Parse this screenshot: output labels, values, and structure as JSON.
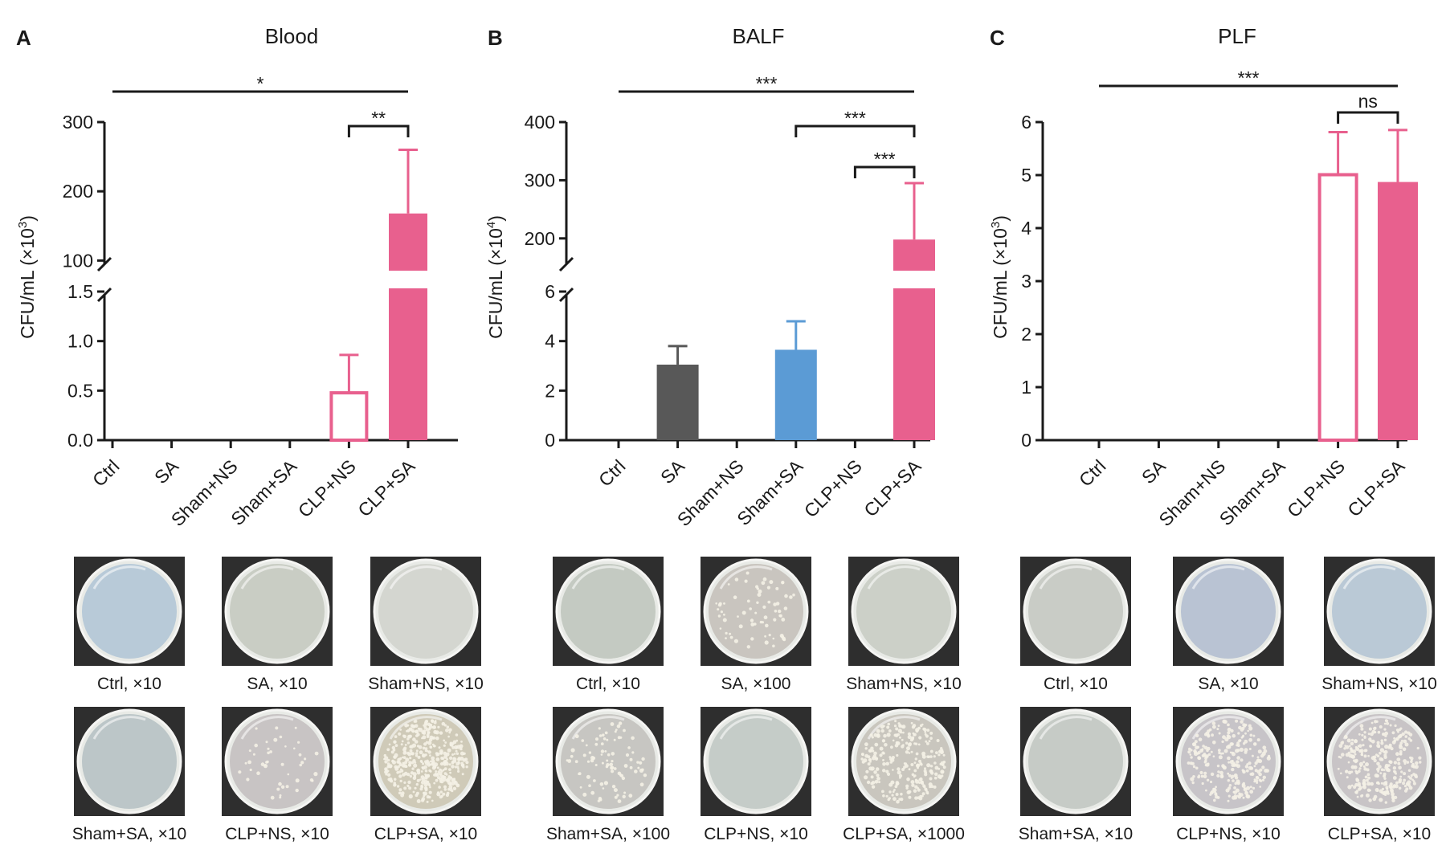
{
  "chart_data": [
    {
      "type": "bar",
      "panel": "A",
      "title": "Blood",
      "ylabel": "CFU/mL (×10³)",
      "ylabel_main": "CFU/mL (×10",
      "ylabel_exp": "3",
      "ylabel_close": ")",
      "categories": [
        "Ctrl",
        "SA",
        "Sham+NS",
        "Sham+SA",
        "CLP+NS",
        "CLP+SA"
      ],
      "values": [
        0,
        0,
        0,
        0,
        0.49,
        168
      ],
      "errors": [
        0,
        0,
        0,
        0,
        0.37,
        92
      ],
      "bar_styles": [
        "none",
        "none",
        "none",
        "none",
        "outline",
        "filled"
      ],
      "colors": [
        "#e8608e",
        "#e8608e",
        "#e8608e",
        "#e8608e",
        "#e8608e",
        "#e8608e"
      ],
      "axis_break": true,
      "ylim_lower": [
        0,
        1.5
      ],
      "ylim_upper": [
        90,
        300
      ],
      "yticks_lower": [
        "0.0",
        "0.5",
        "1.0",
        "1.5"
      ],
      "yticks_upper": [
        "100",
        "200",
        "300"
      ],
      "significance": [
        {
          "from": 0,
          "to": 5,
          "label": "*",
          "style": "line"
        },
        {
          "from": 4,
          "to": 5,
          "label": "**",
          "style": "bracket"
        }
      ]
    },
    {
      "type": "bar",
      "panel": "B",
      "title": "BALF",
      "ylabel": "CFU/mL (×10⁴)",
      "ylabel_main": "CFU/mL (×10",
      "ylabel_exp": "4",
      "ylabel_close": ")",
      "categories": [
        "Ctrl",
        "SA",
        "Sham+NS",
        "Sham+SA",
        "CLP+NS",
        "CLP+SA"
      ],
      "values": [
        0,
        3.05,
        0,
        3.65,
        0,
        198
      ],
      "errors": [
        0,
        0.75,
        0,
        1.15,
        0,
        97
      ],
      "bar_styles": [
        "none",
        "filled",
        "none",
        "filled",
        "none",
        "filled"
      ],
      "colors": [
        "#585858",
        "#585858",
        "#5b9bd5",
        "#5b9bd5",
        "#e8608e",
        "#e8608e"
      ],
      "axis_break": true,
      "ylim_lower": [
        0,
        6
      ],
      "ylim_upper": [
        150,
        400
      ],
      "yticks_lower": [
        "0",
        "2",
        "4",
        "6"
      ],
      "yticks_upper": [
        "200",
        "300",
        "400"
      ],
      "significance": [
        {
          "from": 0,
          "to": 5,
          "label": "***",
          "style": "line"
        },
        {
          "from": 3,
          "to": 5,
          "label": "***",
          "style": "bracket"
        },
        {
          "from": 4,
          "to": 5,
          "label": "***",
          "style": "bracket"
        }
      ]
    },
    {
      "type": "bar",
      "panel": "C",
      "title": "PLF",
      "ylabel": "CFU/mL (×10³)",
      "ylabel_main": "CFU/mL (×10",
      "ylabel_exp": "3",
      "ylabel_close": ")",
      "categories": [
        "Ctrl",
        "SA",
        "Sham+NS",
        "Sham+SA",
        "CLP+NS",
        "CLP+SA"
      ],
      "values": [
        0,
        0,
        0,
        0,
        5.03,
        4.87
      ],
      "errors": [
        0,
        0,
        0,
        0,
        0.78,
        0.98
      ],
      "bar_styles": [
        "none",
        "none",
        "none",
        "none",
        "outline",
        "filled"
      ],
      "colors": [
        "#e8608e",
        "#e8608e",
        "#e8608e",
        "#e8608e",
        "#e8608e",
        "#e8608e"
      ],
      "axis_break": false,
      "ylim": [
        0,
        6
      ],
      "yticks": [
        "0",
        "1",
        "2",
        "3",
        "4",
        "5",
        "6"
      ],
      "significance": [
        {
          "from": 0,
          "to": 5,
          "label": "***",
          "style": "line"
        },
        {
          "from": 4,
          "to": 5,
          "label": "ns",
          "style": "bracket"
        }
      ]
    }
  ],
  "plates": [
    {
      "panel": "A",
      "items": [
        {
          "caption": "Ctrl, ×10",
          "colonies": 0,
          "tone": "#b8cad8"
        },
        {
          "caption": "SA, ×10",
          "colonies": 0,
          "tone": "#c9cdc4"
        },
        {
          "caption": "Sham+NS, ×10",
          "colonies": 0,
          "tone": "#d4d6d0"
        },
        {
          "caption": "Sham+SA, ×10",
          "colonies": 0,
          "tone": "#bcc6c8"
        },
        {
          "caption": "CLP+NS, ×10",
          "colonies": 45,
          "tone": "#c8c4c4"
        },
        {
          "caption": "CLP+SA, ×10",
          "colonies": 420,
          "tone": "#cfcab8"
        }
      ]
    },
    {
      "panel": "B",
      "items": [
        {
          "caption": "Ctrl, ×10",
          "colonies": 0,
          "tone": "#c4cac2"
        },
        {
          "caption": "SA, ×100",
          "colonies": 70,
          "tone": "#c9c5bf"
        },
        {
          "caption": "Sham+NS, ×10",
          "colonies": 0,
          "tone": "#ccd0c8"
        },
        {
          "caption": "Sham+SA, ×100",
          "colonies": 90,
          "tone": "#c7c6c2"
        },
        {
          "caption": "CLP+NS, ×10",
          "colonies": 0,
          "tone": "#c5ccc8"
        },
        {
          "caption": "CLP+SA, ×1000",
          "colonies": 260,
          "tone": "#c9c6be"
        }
      ]
    },
    {
      "panel": "C",
      "items": [
        {
          "caption": "Ctrl, ×10",
          "colonies": 0,
          "tone": "#c9ccc6"
        },
        {
          "caption": "SA, ×10",
          "colonies": 0,
          "tone": "#b9c3d3"
        },
        {
          "caption": "Sham+NS, ×10",
          "colonies": 0,
          "tone": "#bac9d6"
        },
        {
          "caption": "Sham+SA, ×10",
          "colonies": 0,
          "tone": "#c6cbc6"
        },
        {
          "caption": "CLP+NS, ×10",
          "colonies": 260,
          "tone": "#c7c4c8"
        },
        {
          "caption": "CLP+SA, ×10",
          "colonies": 300,
          "tone": "#c8c4c6"
        }
      ]
    }
  ]
}
